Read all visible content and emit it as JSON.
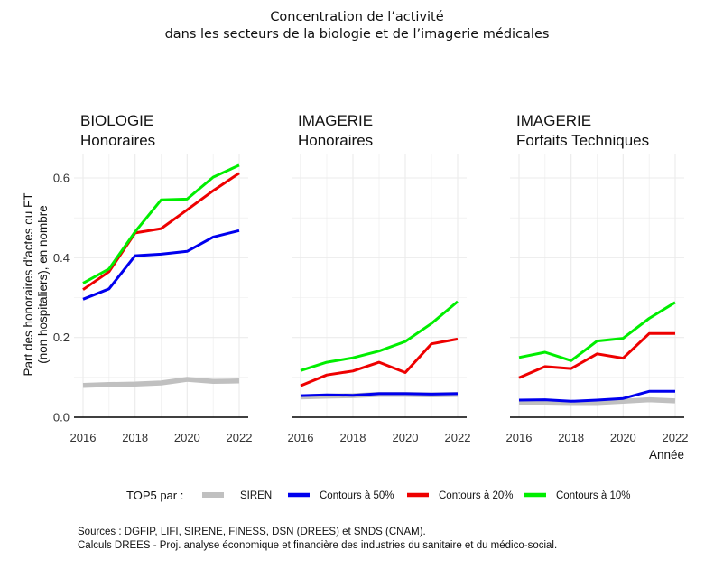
{
  "title_line1": "Concentration de l’activité",
  "title_line2": "dans les secteurs de la biologie et de l’imagerie médicales",
  "source_line1": "Sources : DGFIP, LIFI, SIRENE, FINESS, DSN (DREES) et SNDS (CNAM).",
  "source_line2": "Calculs DREES - Proj. analyse économique et financière des industries du sanitaire et du médico-social.",
  "colors": {
    "siren": "#c0c0c0",
    "p50": "#0000ee",
    "p20": "#ee0000",
    "p10": "#00ee00",
    "grid": "#ebebeb"
  },
  "chart_data": {
    "type": "line",
    "ylabel": [
      "Part des honoraires d'actes ou FT",
      "(non hospitaliers), en nombre"
    ],
    "xlabel": "Année",
    "x": [
      2016,
      2017,
      2018,
      2019,
      2020,
      2021,
      2022
    ],
    "xticks": [
      "2016",
      "2018",
      "2020",
      "2022"
    ],
    "ylim": [
      0,
      0.66
    ],
    "yticks": [
      "0.0",
      "0.2",
      "0.4",
      "0.6"
    ],
    "grid": true,
    "legend": {
      "position": "bottom",
      "title": "TOP5 par :",
      "entries": [
        {
          "label": "SIREN",
          "color": "#c0c0c0"
        },
        {
          "label": "Contours à 50%",
          "color": "#0000ee"
        },
        {
          "label": "Contours à 20%",
          "color": "#ee0000"
        },
        {
          "label": "Contours à 10%",
          "color": "#00ee00"
        }
      ]
    },
    "panels": [
      {
        "title": [
          "BIOLOGIE",
          "Honoraires"
        ],
        "series": [
          {
            "name": "SIREN",
            "color": "#c0c0c0",
            "values": [
              0.08,
              0.082,
              0.083,
              0.086,
              0.095,
              0.09,
              0.091
            ]
          },
          {
            "name": "Contours à 50%",
            "color": "#0000ee",
            "values": [
              0.296,
              0.322,
              0.405,
              0.409,
              0.416,
              0.452,
              0.468
            ]
          },
          {
            "name": "Contours à 20%",
            "color": "#ee0000",
            "values": [
              0.32,
              0.365,
              0.462,
              0.473,
              0.52,
              0.568,
              0.612
            ]
          },
          {
            "name": "Contours à 10%",
            "color": "#00ee00",
            "values": [
              0.336,
              0.372,
              0.465,
              0.545,
              0.547,
              0.602,
              0.632
            ]
          }
        ]
      },
      {
        "title": [
          "IMAGERIE",
          "Honoraires"
        ],
        "series": [
          {
            "name": "SIREN",
            "color": "#c0c0c0",
            "values": [
              0.051,
              0.053,
              0.054,
              0.057,
              0.057,
              0.056,
              0.057
            ]
          },
          {
            "name": "Contours à 50%",
            "color": "#0000ee",
            "values": [
              0.054,
              0.056,
              0.055,
              0.059,
              0.059,
              0.058,
              0.059
            ]
          },
          {
            "name": "Contours à 20%",
            "color": "#ee0000",
            "values": [
              0.079,
              0.106,
              0.116,
              0.138,
              0.112,
              0.184,
              0.196
            ]
          },
          {
            "name": "Contours à 10%",
            "color": "#00ee00",
            "values": [
              0.117,
              0.138,
              0.149,
              0.166,
              0.19,
              0.235,
              0.29
            ]
          }
        ]
      },
      {
        "title": [
          "IMAGERIE",
          "Forfaits Techniques"
        ],
        "series": [
          {
            "name": "SIREN",
            "color": "#c0c0c0",
            "values": [
              0.038,
              0.038,
              0.037,
              0.037,
              0.04,
              0.044,
              0.041
            ]
          },
          {
            "name": "Contours à 50%",
            "color": "#0000ee",
            "values": [
              0.043,
              0.044,
              0.04,
              0.043,
              0.047,
              0.065,
              0.065
            ]
          },
          {
            "name": "Contours à 20%",
            "color": "#ee0000",
            "values": [
              0.099,
              0.127,
              0.122,
              0.159,
              0.148,
              0.21,
              0.21
            ]
          },
          {
            "name": "Contours à 10%",
            "color": "#00ee00",
            "values": [
              0.15,
              0.163,
              0.142,
              0.191,
              0.198,
              0.248,
              0.288
            ]
          }
        ]
      }
    ]
  }
}
